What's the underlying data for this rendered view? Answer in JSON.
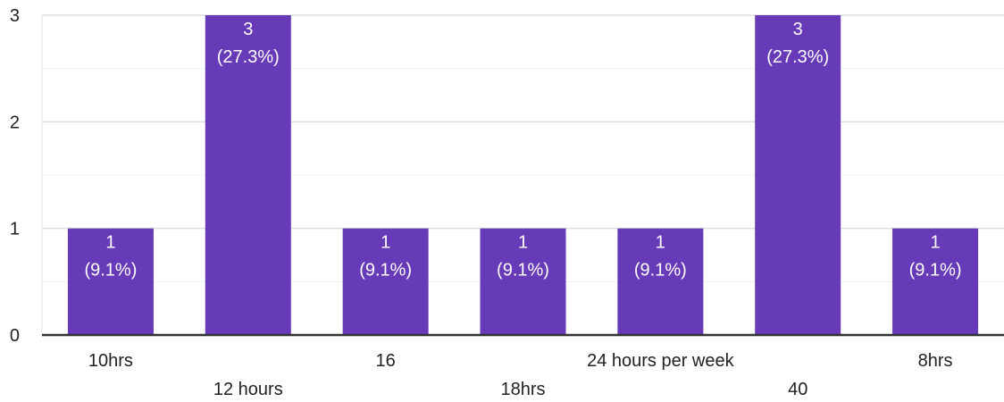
{
  "chart_data": {
    "type": "bar",
    "categories": [
      "10hrs",
      "12 hours",
      "16",
      "18hrs",
      "24 hours per week",
      "40",
      "8hrs"
    ],
    "values": [
      1,
      3,
      1,
      1,
      1,
      3,
      1
    ],
    "value_labels": [
      [
        "1",
        "(9.1%)"
      ],
      [
        "3",
        "(27.3%)"
      ],
      [
        "1",
        "(9.1%)"
      ],
      [
        "1",
        "(9.1%)"
      ],
      [
        "1",
        "(9.1%)"
      ],
      [
        "3",
        "(27.3%)"
      ],
      [
        "1",
        "(9.1%)"
      ]
    ],
    "title": "",
    "xlabel": "",
    "ylabel": "",
    "ylim": [
      0,
      3
    ],
    "yticks": [
      "0",
      "1",
      "2",
      "3"
    ],
    "grid": true,
    "colors": {
      "bar": "#673ab7",
      "grid": "#e0e0e0",
      "axis": "#333333"
    }
  }
}
